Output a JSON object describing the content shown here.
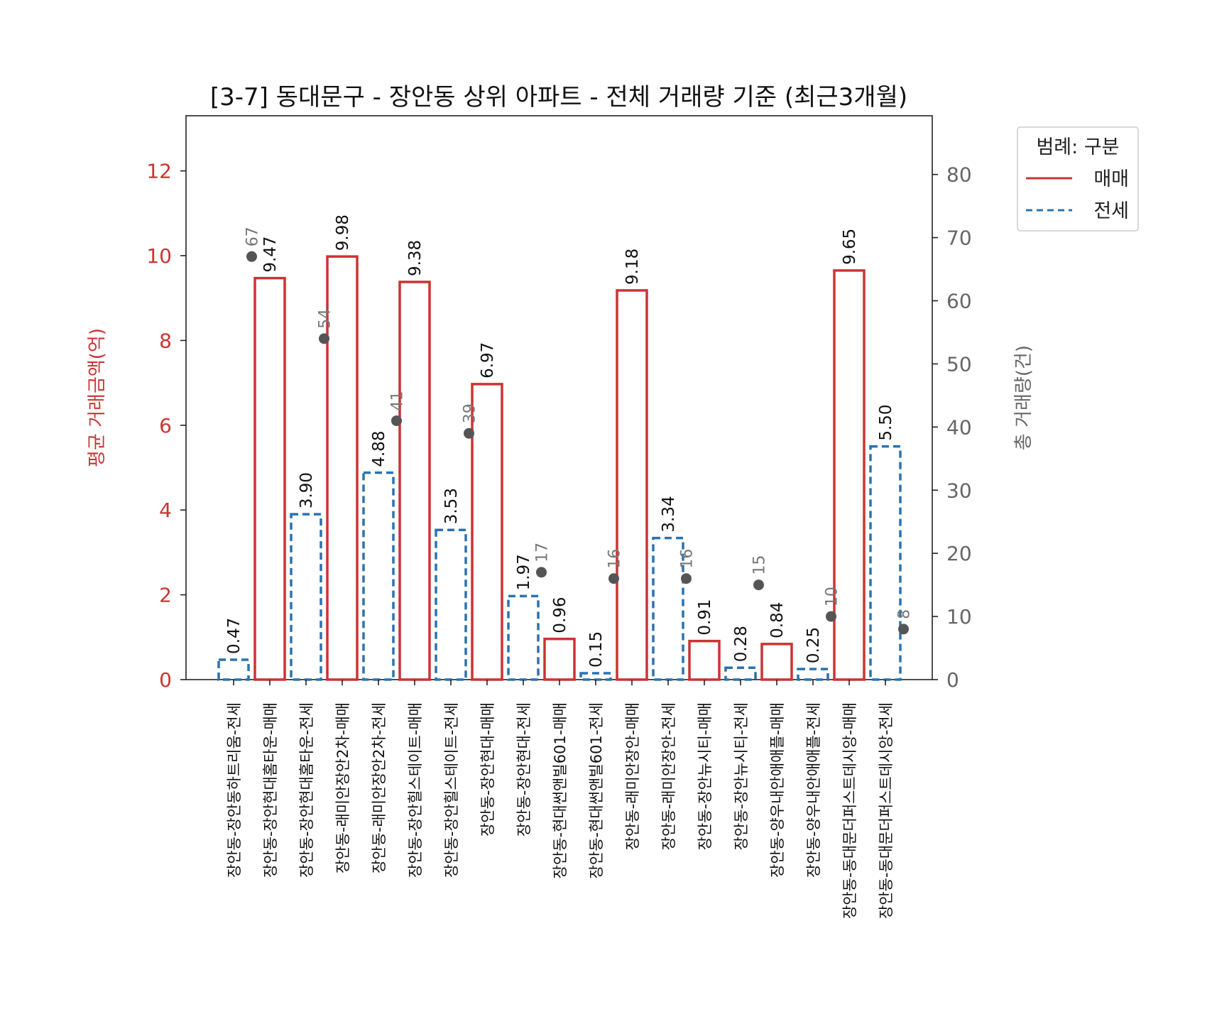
{
  "chart_data": {
    "type": "bar",
    "title": "[3-7] 동대문구 - 장안동 상위 아파트 - 전체 거래량 기준 (최근3개월)",
    "ylabel": "평균 거래금액(억)",
    "y2label": "총 거래량(건)",
    "ylim": [
      0,
      13.3
    ],
    "y2lim": [
      0,
      89.3
    ],
    "yticks": [
      "0",
      "2",
      "4",
      "6",
      "8",
      "10",
      "12"
    ],
    "y2ticks": [
      "0",
      "10",
      "20",
      "30",
      "40",
      "50",
      "60",
      "70",
      "80"
    ],
    "grid": false,
    "legend": {
      "title": "범례: 구분",
      "position": "outside-top-right",
      "entries": [
        {
          "label": "매매",
          "color": "#cc3333",
          "style": "solid"
        },
        {
          "label": "전세",
          "color": "#2a72b0",
          "style": "dashed"
        }
      ]
    },
    "colors": {
      "sale": "#cc3333",
      "jeonse": "#2a72b0",
      "count_dot": "#555555",
      "left_axis": "#cc3333",
      "right_axis": "#666666"
    },
    "categories": [
      "장안동-장안동하트리움-전세",
      "장안동-장안현대홈타운-매매",
      "장안동-장안현대홈타운-전세",
      "장안동-래미안장안2차-매매",
      "장안동-래미안장안2차-전세",
      "장안동-장안힐스테이트-매매",
      "장안동-장안힐스테이트-전세",
      "장안동-장안현대-매매",
      "장안동-장안현대-전세",
      "장안동-현대썬앤빌601-매매",
      "장안동-현대썬앤빌601-전세",
      "장안동-래미안장안-매매",
      "장안동-래미안장안-전세",
      "장안동-장안뉴시티-매매",
      "장안동-장안뉴시티-전세",
      "장안동-양우내안애애플-매매",
      "장안동-양우내안애애플-전세",
      "장안동-동대문더퍼스트데시앙-매매",
      "장안동-동대문더퍼스트데시앙-전세"
    ],
    "bar_types": [
      "전세",
      "매매",
      "전세",
      "매매",
      "전세",
      "매매",
      "전세",
      "매매",
      "전세",
      "매매",
      "전세",
      "매매",
      "전세",
      "매매",
      "전세",
      "매매",
      "전세",
      "매매",
      "전세"
    ],
    "values": [
      0.47,
      9.47,
      3.9,
      9.98,
      4.88,
      9.38,
      3.53,
      6.97,
      1.97,
      0.96,
      0.15,
      9.18,
      3.34,
      0.91,
      0.28,
      0.84,
      0.25,
      9.65,
      5.5
    ],
    "value_labels": [
      "0.47",
      "9.47",
      "3.90",
      "9.98",
      "4.88",
      "9.38",
      "3.53",
      "6.97",
      "1.97",
      "0.96",
      "0.15",
      "9.18",
      "3.34",
      "0.91",
      "0.28",
      "0.84",
      "0.25",
      "9.65",
      "5.50"
    ],
    "count_points": [
      {
        "between": [
          0,
          1
        ],
        "value": 67,
        "label": "67"
      },
      {
        "between": [
          2,
          3
        ],
        "value": 54,
        "label": "54"
      },
      {
        "between": [
          4,
          5
        ],
        "value": 41,
        "label": "41"
      },
      {
        "between": [
          6,
          7
        ],
        "value": 39,
        "label": "39"
      },
      {
        "between": [
          8,
          9
        ],
        "value": 17,
        "label": "17"
      },
      {
        "between": [
          10,
          11
        ],
        "value": 16,
        "label": "16"
      },
      {
        "between": [
          12,
          13
        ],
        "value": 16,
        "label": "16"
      },
      {
        "between": [
          14,
          15
        ],
        "value": 15,
        "label": "15"
      },
      {
        "between": [
          16,
          17
        ],
        "value": 10,
        "label": "10"
      },
      {
        "between": [
          18,
          19
        ],
        "value": 8,
        "label": "8"
      }
    ]
  }
}
